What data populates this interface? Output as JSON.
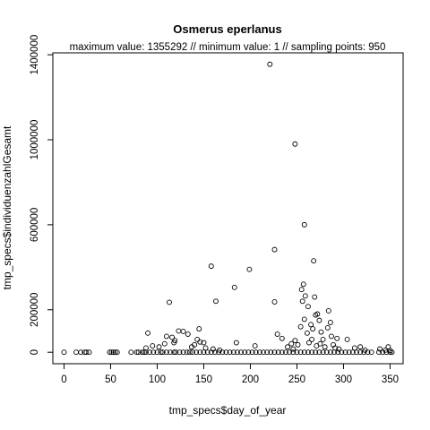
{
  "chart_data": {
    "type": "scatter",
    "title": "Osmerus eperlanus",
    "subtitle": "maximum value: 1355292  //  minimum value: 1  // sampling points: 950",
    "xlabel": "tmp_specs$day_of_year",
    "ylabel": "tmp_specs$individuenzahlGesamt",
    "xlim": [
      -12,
      364
    ],
    "ylim": [
      -54000,
      1409000
    ],
    "xticks": [
      0,
      50,
      100,
      150,
      200,
      250,
      300,
      350
    ],
    "yticks": [
      0,
      200000,
      600000,
      1000000,
      1400000
    ],
    "ytick_labels": [
      "0",
      "200000",
      "600000",
      "1000000",
      "1400000"
    ],
    "grid": false,
    "marker": "open-circle",
    "points": [
      [
        221,
        1355292
      ],
      [
        248,
        980000
      ],
      [
        258,
        600000
      ],
      [
        268,
        430000
      ],
      [
        158,
        405000
      ],
      [
        199,
        390000
      ],
      [
        226,
        483000
      ],
      [
        183,
        305000
      ],
      [
        163,
        240000
      ],
      [
        226,
        237000
      ],
      [
        113,
        235000
      ],
      [
        257,
        320000
      ],
      [
        255,
        295000
      ],
      [
        259,
        265000
      ],
      [
        269,
        260000
      ],
      [
        256,
        240000
      ],
      [
        262,
        215000
      ],
      [
        272,
        180000
      ],
      [
        270,
        175000
      ],
      [
        284,
        195000
      ],
      [
        258,
        155000
      ],
      [
        265,
        130000
      ],
      [
        286,
        140000
      ],
      [
        274,
        150000
      ],
      [
        254,
        120000
      ],
      [
        267,
        110000
      ],
      [
        283,
        115000
      ],
      [
        276,
        95000
      ],
      [
        261,
        90000
      ],
      [
        287,
        75000
      ],
      [
        293,
        65000
      ],
      [
        278,
        60000
      ],
      [
        90,
        90000
      ],
      [
        110,
        75000
      ],
      [
        123,
        100000
      ],
      [
        145,
        110000
      ],
      [
        133,
        85000
      ],
      [
        128,
        98000
      ],
      [
        119,
        55000
      ],
      [
        118,
        45000
      ],
      [
        116,
        70000
      ],
      [
        108,
        40000
      ],
      [
        102,
        25000
      ],
      [
        95,
        30000
      ],
      [
        88,
        20000
      ],
      [
        143,
        60000
      ],
      [
        146,
        48000
      ],
      [
        150,
        45000
      ],
      [
        140,
        35000
      ],
      [
        137,
        25000
      ],
      [
        152,
        20000
      ],
      [
        160,
        15000
      ],
      [
        167,
        10000
      ],
      [
        185,
        45000
      ],
      [
        205,
        30000
      ],
      [
        229,
        85000
      ],
      [
        234,
        65000
      ],
      [
        240,
        25000
      ],
      [
        244,
        40000
      ],
      [
        246,
        15000
      ],
      [
        248,
        55000
      ],
      [
        251,
        35000
      ],
      [
        263,
        45000
      ],
      [
        266,
        60000
      ],
      [
        271,
        30000
      ],
      [
        275,
        40000
      ],
      [
        280,
        25000
      ],
      [
        289,
        35000
      ],
      [
        291,
        20000
      ],
      [
        295,
        15000
      ],
      [
        304,
        60000
      ],
      [
        312,
        20000
      ],
      [
        318,
        25000
      ],
      [
        323,
        10000
      ],
      [
        339,
        15000
      ],
      [
        345,
        10000
      ],
      [
        348,
        25000
      ],
      [
        350,
        8000
      ],
      [
        0,
        0
      ],
      [
        13,
        0
      ],
      [
        18,
        0
      ],
      [
        22,
        0
      ],
      [
        24,
        0
      ],
      [
        27,
        0
      ],
      [
        49,
        0
      ],
      [
        51,
        0
      ],
      [
        53,
        0
      ],
      [
        55,
        0
      ],
      [
        57,
        0
      ],
      [
        72,
        0
      ],
      [
        78,
        0
      ],
      [
        80,
        0
      ],
      [
        84,
        0
      ],
      [
        86,
        0
      ],
      [
        88,
        0
      ],
      [
        92,
        0
      ],
      [
        96,
        0
      ],
      [
        100,
        0
      ],
      [
        104,
        0
      ],
      [
        106,
        0
      ],
      [
        110,
        0
      ],
      [
        114,
        0
      ],
      [
        118,
        0
      ],
      [
        120,
        0
      ],
      [
        124,
        0
      ],
      [
        128,
        0
      ],
      [
        132,
        0
      ],
      [
        135,
        0
      ],
      [
        138,
        0
      ],
      [
        142,
        0
      ],
      [
        146,
        0
      ],
      [
        150,
        0
      ],
      [
        154,
        0
      ],
      [
        158,
        0
      ],
      [
        162,
        0
      ],
      [
        166,
        0
      ],
      [
        170,
        0
      ],
      [
        174,
        0
      ],
      [
        178,
        0
      ],
      [
        182,
        0
      ],
      [
        186,
        0
      ],
      [
        190,
        0
      ],
      [
        194,
        0
      ],
      [
        198,
        0
      ],
      [
        202,
        0
      ],
      [
        206,
        0
      ],
      [
        210,
        0
      ],
      [
        214,
        0
      ],
      [
        218,
        0
      ],
      [
        222,
        0
      ],
      [
        226,
        0
      ],
      [
        230,
        0
      ],
      [
        234,
        0
      ],
      [
        238,
        0
      ],
      [
        242,
        0
      ],
      [
        246,
        0
      ],
      [
        250,
        0
      ],
      [
        254,
        0
      ],
      [
        258,
        0
      ],
      [
        262,
        0
      ],
      [
        266,
        0
      ],
      [
        270,
        0
      ],
      [
        274,
        0
      ],
      [
        278,
        0
      ],
      [
        282,
        0
      ],
      [
        286,
        0
      ],
      [
        290,
        0
      ],
      [
        294,
        0
      ],
      [
        298,
        0
      ],
      [
        302,
        0
      ],
      [
        306,
        0
      ],
      [
        310,
        0
      ],
      [
        314,
        0
      ],
      [
        318,
        0
      ],
      [
        322,
        0
      ],
      [
        326,
        0
      ],
      [
        330,
        0
      ],
      [
        338,
        0
      ],
      [
        342,
        0
      ],
      [
        346,
        0
      ],
      [
        350,
        0
      ],
      [
        352,
        0
      ]
    ]
  }
}
